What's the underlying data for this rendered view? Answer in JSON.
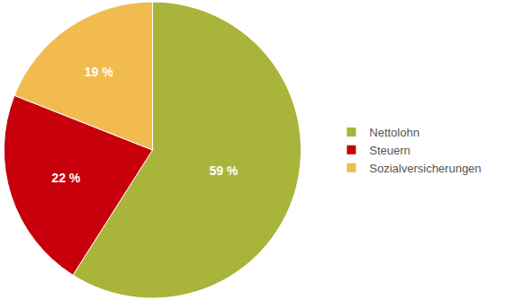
{
  "chart_data": {
    "type": "pie",
    "categories": [
      "Nettolohn",
      "Steuern",
      "Sozialversicherungen"
    ],
    "values": [
      59,
      22,
      19
    ],
    "value_labels": [
      "59 %",
      "22 %",
      "19 %"
    ],
    "colors": [
      "#a8b43a",
      "#c7000b",
      "#f2bb4f"
    ],
    "data_labels": true,
    "legend": "right"
  }
}
